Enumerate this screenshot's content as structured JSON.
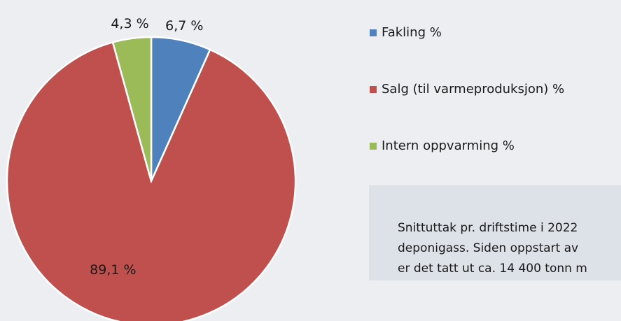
{
  "chart_data": {
    "type": "pie",
    "categories": [
      "Fakling %",
      "Salg (til varmeproduksjon) %",
      "Intern oppvarming %"
    ],
    "values": [
      6.7,
      89.1,
      4.3
    ],
    "value_labels": [
      "6,7 %",
      "89,1 %",
      "4,3 %"
    ],
    "colors": [
      "#4f81bd",
      "#c0504d",
      "#9bbb59"
    ],
    "legend": "right",
    "annotation": [
      "Snittuttak pr. driftstime i 2022",
      "deponigass. Siden oppstart av",
      "er det tatt ut ca. 14 400 tonn m"
    ]
  }
}
